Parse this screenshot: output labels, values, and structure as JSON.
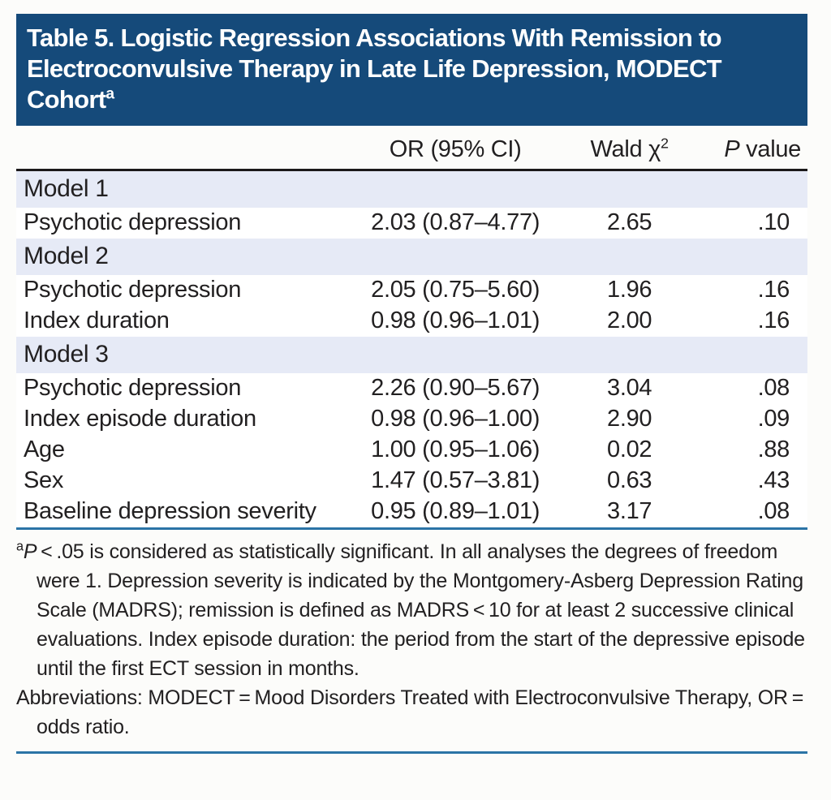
{
  "colors": {
    "title_band": "#154a7a",
    "section_band": "#e6eaf6",
    "rule_blue": "#2b74a6",
    "rule_black": "#1b191a",
    "text": "#222021",
    "page_bg": "#fcfcfa"
  },
  "title": {
    "text": "Table 5. Logistic Regression Associations With Remission to Electroconvulsive Therapy in Late Life Depression, MODECT Cohort",
    "footnote_marker": "a"
  },
  "table": {
    "headers": {
      "predictor": "",
      "or_ci": "OR (95% CI)",
      "wald_prefix": "Wald χ",
      "wald_sup": "2",
      "p_italic": "P",
      "p_rest": " value"
    },
    "sections": [
      {
        "label": "Model 1",
        "rows": [
          {
            "predictor": "Psychotic depression",
            "or_ci": "2.03 (0.87–4.77)",
            "wald": "2.65",
            "p": ".10"
          }
        ]
      },
      {
        "label": "Model 2",
        "rows": [
          {
            "predictor": "Psychotic depression",
            "or_ci": "2.05 (0.75–5.60)",
            "wald": "1.96",
            "p": ".16"
          },
          {
            "predictor": "Index duration",
            "or_ci": "0.98 (0.96–1.01)",
            "wald": "2.00",
            "p": ".16"
          }
        ]
      },
      {
        "label": "Model 3",
        "rows": [
          {
            "predictor": "Psychotic depression",
            "or_ci": "2.26 (0.90–5.67)",
            "wald": "3.04",
            "p": ".08"
          },
          {
            "predictor": "Index episode duration",
            "or_ci": "0.98 (0.96–1.00)",
            "wald": "2.90",
            "p": ".09"
          },
          {
            "predictor": "Age",
            "or_ci": "1.00 (0.95–1.06)",
            "wald": "0.02",
            "p": ".88"
          },
          {
            "predictor": "Sex",
            "or_ci": "1.47 (0.57–3.81)",
            "wald": "0.63",
            "p": ".43"
          },
          {
            "predictor": "Baseline depression severity",
            "or_ci": "0.95 (0.89–1.01)",
            "wald": "3.17",
            "p": ".08"
          }
        ]
      }
    ]
  },
  "footnotes": {
    "marker": "a",
    "p_italic": "P",
    "general": " < .05 is considered as statistically significant. In all analyses the degrees of freedom were 1. Depression severity is indicated by the Montgomery-Asberg Depression Rating Scale (MADRS); remission is defined as MADRS < 10 for at least 2 successive clinical evaluations. Index episode duration: the period from the start of the depressive episode until the first ECT session in months.",
    "abbreviations": "Abbreviations: MODECT = Mood Disorders Treated with Electroconvulsive Therapy, OR = odds ratio."
  }
}
